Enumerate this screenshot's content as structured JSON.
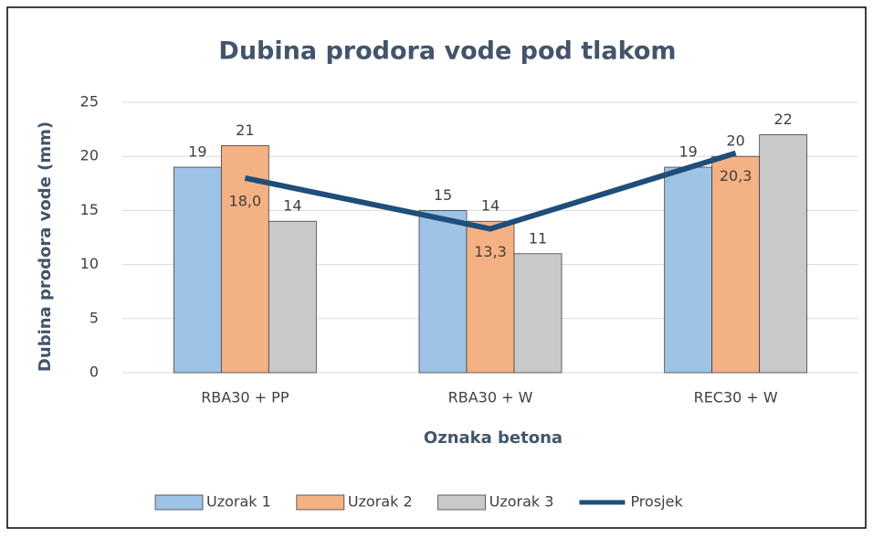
{
  "chart_data": {
    "type": "bar",
    "title": "Dubina prodora vode pod tlakom",
    "y_label": "Dubina prodora vode (mm)",
    "x_label": "Oznaka betona",
    "categories": [
      "RBA30 + PP",
      "RBA30 + W",
      "REC30 + W"
    ],
    "series": [
      {
        "name": "Uzorak 1",
        "color": "#9dc3e6",
        "values": [
          19,
          15,
          19
        ]
      },
      {
        "name": "Uzorak 2",
        "color": "#f4b183",
        "values": [
          21,
          14,
          20
        ]
      },
      {
        "name": "Uzorak 3",
        "color": "#c9c9c9",
        "values": [
          14,
          11,
          22
        ]
      },
      {
        "name": "Prosjek",
        "type": "line",
        "color": "#1f4e79",
        "values": [
          18.0,
          13.3,
          20.3
        ],
        "value_labels": [
          "18,0",
          "13,3",
          "20,3"
        ]
      }
    ],
    "ylim": [
      0,
      25
    ],
    "yticks": [
      0,
      5,
      10,
      15,
      20,
      25
    ],
    "grid": true,
    "legend": "bottom"
  }
}
